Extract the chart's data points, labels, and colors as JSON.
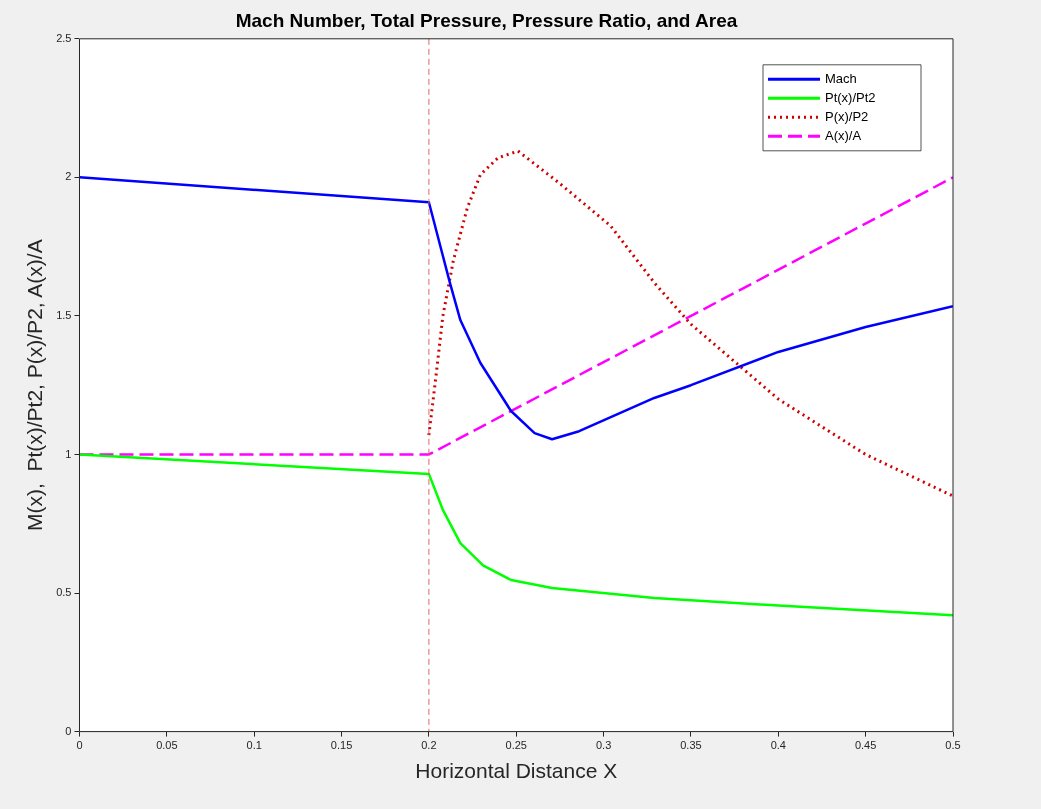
{
  "chart_data": {
    "type": "line",
    "title": "Mach Number, Total Pressure, Pressure Ratio, and Area",
    "xlabel": "Horizontal Distance X",
    "ylabel": "M(x),  Pt(x)/Pt2, P(x)/P2, A(x)/A",
    "xlim": [
      0,
      0.5
    ],
    "xticks": [
      0,
      0.05,
      0.1,
      0.15,
      0.2,
      0.25,
      0.3,
      0.35,
      0.4,
      0.45,
      0.5
    ],
    "ylim": [
      0,
      2.5
    ],
    "yticks": [
      0,
      0.5,
      1,
      1.5,
      2,
      2.5
    ],
    "grid": false,
    "legend": "top right",
    "marker": "none",
    "ref_lines": [
      {
        "axis": "x",
        "value": 0.2,
        "color": "#e06666",
        "line_style": "dashed"
      }
    ],
    "series": [
      {
        "name": "Mach",
        "color": "#0000ff",
        "line_style": "solid",
        "x": [
          0,
          0.2,
          0.212,
          0.218,
          0.2295,
          0.247,
          0.2605,
          0.2705,
          0.286,
          0.329,
          0.35,
          0.4,
          0.45,
          0.5
        ],
        "values": [
          2,
          1.91,
          1.62,
          1.485,
          1.33,
          1.157,
          1.077,
          1.055,
          1.084,
          1.204,
          1.25,
          1.37,
          1.46,
          1.535
        ]
      },
      {
        "name": "Pt(x)/Pt2",
        "color": "#00ff00",
        "line_style": "solid",
        "x": [
          0,
          0.2,
          0.208,
          0.218,
          0.231,
          0.247,
          0.2705,
          0.329,
          0.4,
          0.5
        ],
        "values": [
          1,
          0.93,
          0.8,
          0.68,
          0.6,
          0.547,
          0.518,
          0.482,
          0.455,
          0.42
        ]
      },
      {
        "name": "P(x)/P2",
        "color": "#d00000",
        "line_style": "dotted",
        "x": [
          0.2,
          0.204,
          0.208,
          0.214,
          0.222,
          0.2295,
          0.2395,
          0.251,
          0.2745,
          0.304,
          0.329,
          0.35,
          0.4,
          0.45,
          0.5
        ],
        "values": [
          1.07,
          1.28,
          1.5,
          1.7,
          1.89,
          2.01,
          2.07,
          2.095,
          1.98,
          1.825,
          1.62,
          1.47,
          1.2,
          1.0,
          0.85
        ]
      },
      {
        "name": "A(x)/A",
        "color": "#ff00ff",
        "line_style": "dashed",
        "x": [
          0,
          0.2,
          0.5
        ],
        "values": [
          1,
          1,
          2
        ]
      }
    ]
  }
}
